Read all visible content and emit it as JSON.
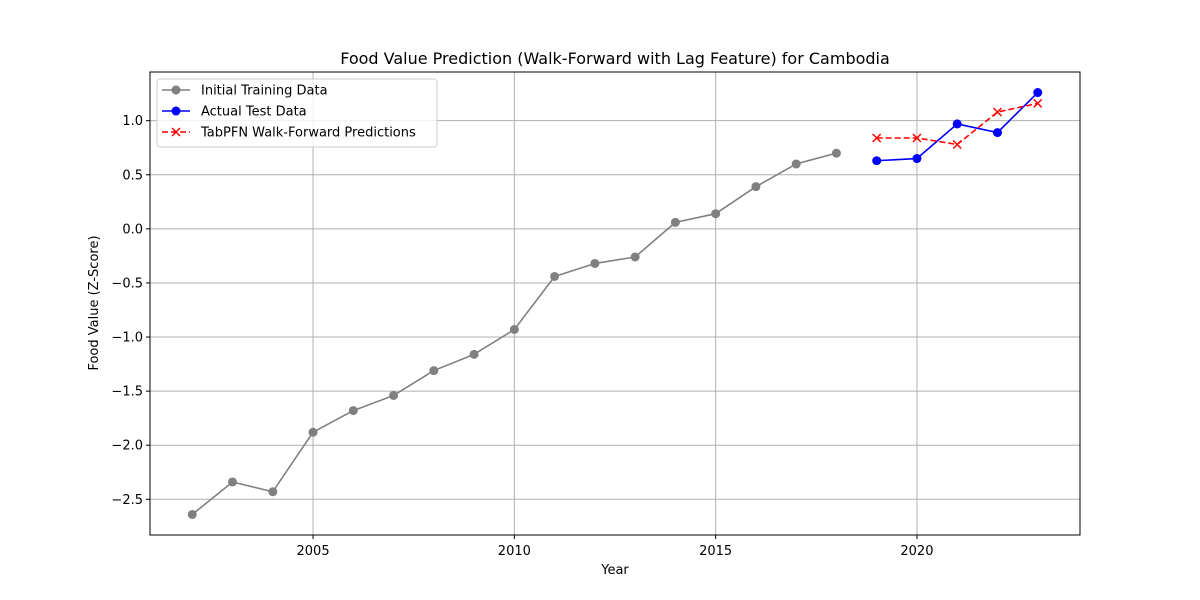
{
  "chart_data": {
    "type": "line",
    "title": "Food Value Prediction (Walk-Forward with Lag Feature) for Cambodia",
    "xlabel": "Year",
    "ylabel": "Food Value (Z-Score)",
    "xlim": [
      2000.95,
      2024.05
    ],
    "ylim": [
      -2.83,
      1.45
    ],
    "x_ticks": [
      2005,
      2010,
      2015,
      2020
    ],
    "y_ticks": [
      -2.5,
      -2.0,
      -1.5,
      -1.0,
      -0.5,
      0.0,
      0.5,
      1.0
    ],
    "x_tick_labels": [
      "2005",
      "2010",
      "2015",
      "2020"
    ],
    "y_tick_labels": [
      "−2.5",
      "−2.0",
      "−1.5",
      "−1.0",
      "−0.5",
      "0.0",
      "0.5",
      "1.0"
    ],
    "grid": true,
    "legend_position": "upper-left",
    "series": [
      {
        "name": "Initial Training Data",
        "color": "#808080",
        "marker": "circle",
        "linestyle": "solid",
        "x": [
          2002,
          2003,
          2004,
          2005,
          2006,
          2007,
          2008,
          2009,
          2010,
          2011,
          2012,
          2013,
          2014,
          2015,
          2016,
          2017,
          2018
        ],
        "values": [
          -2.64,
          -2.34,
          -2.43,
          -1.88,
          -1.68,
          -1.54,
          -1.31,
          -1.16,
          -0.93,
          -0.44,
          -0.32,
          -0.26,
          0.06,
          0.14,
          0.39,
          0.6,
          0.7
        ]
      },
      {
        "name": "Actual Test Data",
        "color": "#0000ff",
        "marker": "circle",
        "linestyle": "solid",
        "x": [
          2019,
          2020,
          2021,
          2022,
          2023
        ],
        "values": [
          0.63,
          0.65,
          0.97,
          0.89,
          1.26
        ]
      },
      {
        "name": "TabPFN Walk-Forward Predictions",
        "color": "#ff0000",
        "marker": "x",
        "linestyle": "dashed",
        "x": [
          2019,
          2020,
          2021,
          2022,
          2023
        ],
        "values": [
          0.84,
          0.84,
          0.78,
          1.08,
          1.16
        ]
      }
    ]
  }
}
